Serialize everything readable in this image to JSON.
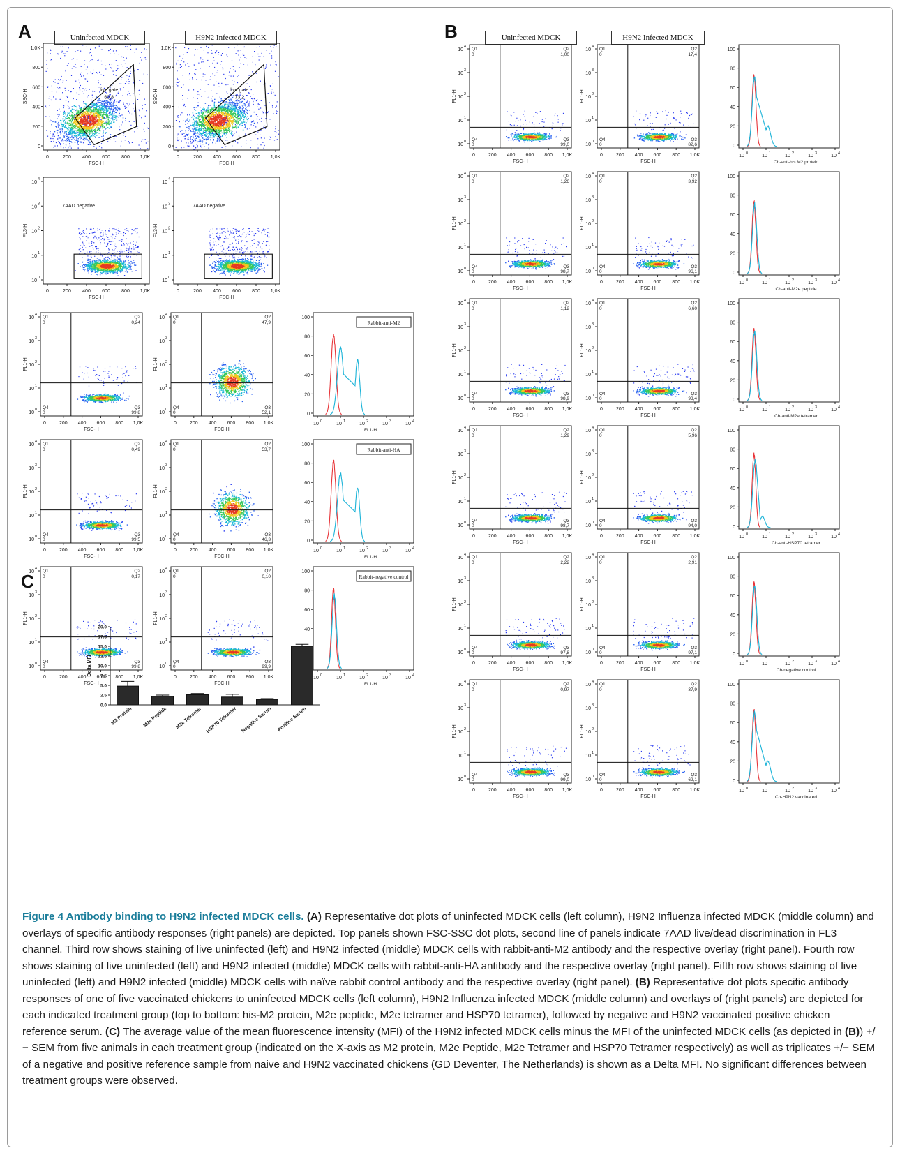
{
  "figure": {
    "panel_labels": {
      "A": "A",
      "B": "B",
      "C": "C"
    },
    "col_headers": {
      "uninfected": "Uninfected MDCK",
      "infected": "H9N2 Infected MDCK"
    },
    "axes": {
      "fsc": "FSC-H",
      "ssc": "SSC-H",
      "fl1": "FL1-H",
      "fl3": "FL3-H",
      "fsc_ticks": [
        "0",
        "200",
        "400",
        "600",
        "800",
        "1,0K"
      ],
      "ssc_ticks": [
        "0",
        "200",
        "400",
        "600",
        "800",
        "1,0K"
      ],
      "log_ticks": [
        "10",
        "10",
        "10",
        "10",
        "10"
      ],
      "log_exps": [
        "0",
        "1",
        "2",
        "3",
        "4"
      ],
      "hist_y_ticks": [
        "0",
        "20",
        "40",
        "60",
        "80",
        "100"
      ]
    },
    "gate_labels": {
      "live_gate": "live gate",
      "aad": "7AAD negative"
    },
    "quad_labels": {
      "q1": "Q1",
      "q2": "Q2",
      "q3": "Q3",
      "q4": "Q4",
      "zero": "0"
    },
    "a_fscssc": [
      {
        "gate_value": "60,8"
      },
      {
        "gate_value": "73,2"
      }
    ],
    "a_quad_rows": [
      {
        "label": "Rabbit-anti-M2",
        "uninf_q2": "0,24",
        "uninf_q3": "99,8",
        "inf_q2": "47,9",
        "inf_q3": "52,1"
      },
      {
        "label": "Rabbit-anti-HA",
        "uninf_q2": "0,49",
        "uninf_q3": "99,5",
        "inf_q2": "53,7",
        "inf_q3": "46,3"
      },
      {
        "label": "Rabbit-negative control",
        "uninf_q2": "0,17",
        "uninf_q3": "99,8",
        "inf_q2": "0,10",
        "inf_q3": "99,9"
      }
    ],
    "b_rows": [
      {
        "xlabel": "Ch-anti-his M2 protein",
        "uninf_q2": "1,00",
        "uninf_q3": "99,0",
        "inf_q2": "17,4",
        "inf_q3": "82,6"
      },
      {
        "xlabel": "Ch-anti-M2e peptide",
        "uninf_q2": "1,26",
        "uninf_q3": "98,7",
        "inf_q2": "3,92",
        "inf_q3": "96,1"
      },
      {
        "xlabel": "Ch-anti-M2e tetramer",
        "uninf_q2": "1,12",
        "uninf_q3": "98,9",
        "inf_q2": "6,60",
        "inf_q3": "93,4"
      },
      {
        "xlabel": "Ch-anti-HSP70 tetramer",
        "uninf_q2": "1,29",
        "uninf_q3": "98,7",
        "inf_q2": "5,96",
        "inf_q3": "94,0"
      },
      {
        "xlabel": "Ch-negative control",
        "uninf_q2": "2,22",
        "uninf_q3": "97,8",
        "inf_q2": "2,91",
        "inf_q3": "97,1"
      },
      {
        "xlabel": "Ch-H9N2 vaccinated",
        "uninf_q2": "0,97",
        "uninf_q3": "99,0",
        "inf_q2": "37,9",
        "inf_q3": "62,1"
      }
    ],
    "colors": {
      "uninfected_trace": "#e8363a",
      "infected_trace": "#1bb3d8",
      "bar": "#2a2a2a"
    }
  },
  "chart_data": {
    "type": "bar",
    "categories": [
      "M2 Protein",
      "M2e Peptide",
      "M2e Tetramer",
      "HSP70 Tetramer",
      "Negative Serum",
      "Positive Serum"
    ],
    "values": [
      4.8,
      2.2,
      2.6,
      2.0,
      1.4,
      15.0
    ],
    "errors": [
      1.2,
      0.3,
      0.3,
      0.7,
      0.2,
      0.5
    ],
    "ylabel": "Delta MFI",
    "yticks": [
      "0.0",
      "2.5",
      "5.0",
      "7.5",
      "10.0",
      "12.5",
      "15.0",
      "17.5",
      "20.0"
    ],
    "ylim": [
      0,
      20
    ],
    "grid": false
  },
  "caption": {
    "figure_label": "Figure 4 Antibody binding to H9N2 infected MDCK cells.",
    "a_label": "(A)",
    "a_text": " Representative dot plots of uninfected MDCK cells (left column), H9N2 Influenza infected MDCK (middle column) and overlays of specific antibody responses (right panels) are depicted. Top panels shown FSC-SSC dot plots, second line of panels indicate 7AAD live/dead discrimination in FL3 channel. Third row shows staining of live uninfected (left) and H9N2 infected (middle) MDCK cells with rabbit-anti-M2 antibody and the respective overlay (right panel). Fourth row shows staining of live uninfected (left) and H9N2 infected (middle) MDCK cells with rabbit-anti-HA antibody and the respective overlay (right panel). Fifth row shows staining of live uninfected (left) and H9N2 infected (middle) MDCK cells with naïve rabbit control antibody and the respective overlay (right panel). ",
    "b_label": "(B)",
    "b_text": " Representative dot plots specific antibody responses of one of five vaccinated chickens to uninfected MDCK cells (left column), H9N2 Influenza infected MDCK (middle column) and overlays of (right panels) are depicted for each indicated treatment group (top to bottom: his-M2 protein, M2e peptide, M2e tetramer and HSP70 tetramer), followed by negative and H9N2 vaccinated positive chicken reference serum. ",
    "c_label": "(C)",
    "c_text": " The average value of the mean fluorescence intensity (MFI) of the H9N2 infected MDCK cells minus the MFI of the uninfected MDCK cells (as depicted in ",
    "c_ref": "(B)",
    "c_text2": ") +/− SEM from five animals in each treatment group (indicated on the X-axis as M2 protein, M2e Peptide, M2e Tetramer and HSP70 Tetramer respectively) as well as triplicates +/− SEM of a negative and positive reference sample from naive and H9N2 vaccinated chickens (GD Deventer, The Netherlands) is shown as a Delta MFI. No significant differences between treatment groups were observed."
  }
}
